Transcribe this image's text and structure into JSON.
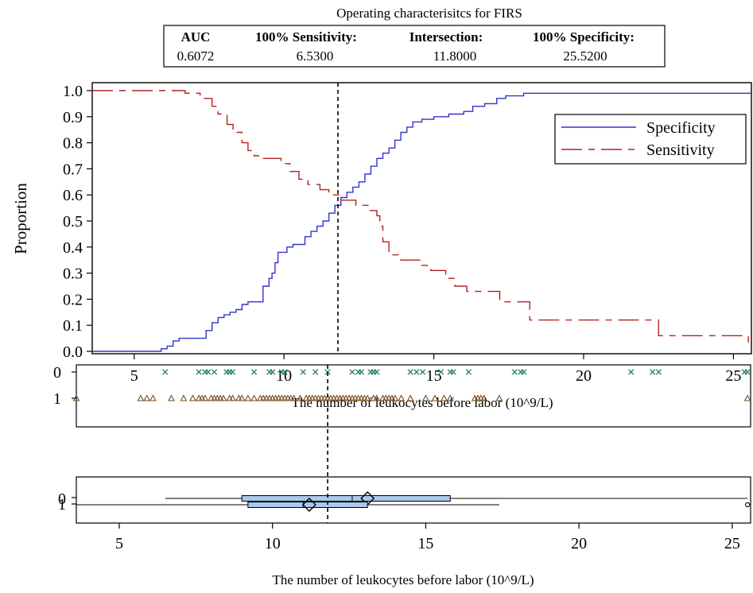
{
  "chart_data": [
    {
      "type": "line",
      "title": "Operating characterisitcs for FIRS",
      "ylabel": "Proportion",
      "xlabel": "The number of leukocytes before labor (10^9/L)",
      "xlim": [
        3.6,
        25.6
      ],
      "ylim": [
        0,
        1
      ],
      "x_ticks": [
        5,
        10,
        15,
        20,
        25
      ],
      "y_ticks": [
        "0.0",
        "0.1",
        "0.2",
        "0.3",
        "0.4",
        "0.5",
        "0.6",
        "0.7",
        "0.8",
        "0.9",
        "1.0"
      ],
      "legend_position": "top-right",
      "reference_line_x": 11.8,
      "stats_table": {
        "headers": [
          "AUC",
          "100% Sensitivity:",
          "Intersection:",
          "100% Specificity:"
        ],
        "values": [
          "0.6072",
          "6.5300",
          "11.8000",
          "25.5200"
        ]
      },
      "series": [
        {
          "name": "Specificity",
          "color": "#3333cc",
          "style": "solid",
          "x": [
            3.6,
            5.9,
            6.1,
            6.3,
            6.5,
            7.4,
            7.6,
            7.8,
            8.0,
            8.2,
            8.4,
            8.6,
            8.8,
            9.3,
            9.5,
            9.6,
            9.7,
            9.8,
            10.1,
            10.3,
            10.7,
            10.9,
            11.1,
            11.3,
            11.5,
            11.7,
            11.9,
            12.1,
            12.3,
            12.5,
            12.7,
            12.9,
            13.1,
            13.3,
            13.5,
            13.7,
            13.9,
            14.1,
            14.3,
            14.6,
            15.0,
            15.5,
            16.0,
            16.3,
            16.7,
            17.1,
            17.4,
            18.0,
            25.6
          ],
          "y": [
            0.0,
            0.01,
            0.02,
            0.04,
            0.05,
            0.08,
            0.11,
            0.13,
            0.14,
            0.15,
            0.16,
            0.18,
            0.19,
            0.25,
            0.28,
            0.3,
            0.34,
            0.38,
            0.4,
            0.41,
            0.44,
            0.46,
            0.48,
            0.5,
            0.53,
            0.56,
            0.59,
            0.61,
            0.63,
            0.65,
            0.68,
            0.71,
            0.74,
            0.76,
            0.78,
            0.81,
            0.84,
            0.86,
            0.88,
            0.89,
            0.9,
            0.91,
            0.92,
            0.94,
            0.95,
            0.97,
            0.98,
            0.99,
            0.99
          ]
        },
        {
          "name": "Sensitivity",
          "color": "#b22222",
          "style": "dashed",
          "x": [
            3.6,
            6.7,
            7.2,
            7.6,
            7.8,
            8.1,
            8.3,
            8.6,
            8.8,
            9.0,
            9.2,
            9.9,
            10.2,
            10.5,
            10.8,
            11.2,
            11.5,
            11.9,
            12.4,
            12.8,
            13.1,
            13.2,
            13.3,
            13.5,
            13.9,
            14.6,
            14.9,
            15.4,
            15.7,
            16.1,
            17.2,
            18.2,
            22.5,
            25.5
          ],
          "y": [
            1.0,
            0.99,
            0.97,
            0.94,
            0.91,
            0.87,
            0.84,
            0.8,
            0.77,
            0.75,
            0.74,
            0.72,
            0.69,
            0.66,
            0.64,
            0.62,
            0.6,
            0.58,
            0.56,
            0.54,
            0.52,
            0.48,
            0.42,
            0.37,
            0.35,
            0.33,
            0.31,
            0.28,
            0.25,
            0.23,
            0.19,
            0.12,
            0.06,
            0.02
          ]
        }
      ]
    },
    {
      "type": "scatter",
      "categories": [
        "0",
        "1"
      ],
      "xlim": [
        3.6,
        25.6
      ],
      "series": [
        {
          "name": "0",
          "marker": "x",
          "color": "#1f7a6b",
          "values": [
            6.5,
            7.6,
            7.8,
            7.9,
            8.1,
            8.5,
            8.6,
            8.7,
            9.4,
            9.9,
            10.0,
            10.3,
            10.4,
            11.0,
            11.4,
            11.8,
            12.6,
            12.8,
            12.9,
            13.2,
            13.3,
            13.4,
            14.5,
            14.7,
            14.9,
            15.5,
            15.8,
            15.9,
            16.4,
            17.9,
            18.1,
            18.2,
            21.7,
            22.4,
            22.6,
            25.4,
            25.5
          ]
        },
        {
          "name": "1",
          "marker": "triangle",
          "color": "#7a4a1a",
          "values": [
            3.6,
            5.7,
            5.9,
            6.1,
            6.7,
            7.1,
            7.4,
            7.6,
            7.7,
            7.8,
            8.0,
            8.1,
            8.2,
            8.3,
            8.4,
            8.6,
            8.7,
            8.9,
            9.0,
            9.2,
            9.4,
            9.6,
            9.7,
            9.8,
            9.9,
            10.0,
            10.1,
            10.2,
            10.3,
            10.4,
            10.5,
            10.6,
            10.7,
            10.9,
            11.1,
            11.2,
            11.3,
            11.4,
            11.5,
            11.6,
            11.7,
            11.8,
            11.9,
            12.0,
            12.1,
            12.2,
            12.3,
            12.4,
            12.5,
            12.6,
            12.7,
            12.8,
            12.9,
            13.0,
            13.1,
            13.3,
            13.4,
            13.6,
            13.7,
            13.8,
            13.9,
            14.0,
            14.2,
            14.5,
            15.0,
            15.3,
            15.6,
            15.8,
            16.6,
            16.7,
            16.8,
            16.9,
            17.4,
            25.5
          ]
        }
      ]
    },
    {
      "type": "box",
      "categories": [
        "0",
        "1"
      ],
      "xlim": [
        3.6,
        25.6
      ],
      "x_ticks": [
        5,
        10,
        15,
        20,
        25
      ],
      "xlabel": "The number of leukocytes before labor (10^9/L)",
      "boxes": [
        {
          "name": "0",
          "min": 6.5,
          "q1": 9.0,
          "median": 12.6,
          "mean": 13.1,
          "q3": 15.8,
          "max": 25.5,
          "outliers": []
        },
        {
          "name": "1",
          "min": 3.6,
          "q1": 9.2,
          "median": 11.0,
          "mean": 11.2,
          "q3": 13.1,
          "max": 17.4,
          "outliers": [
            25.5
          ]
        }
      ]
    }
  ]
}
